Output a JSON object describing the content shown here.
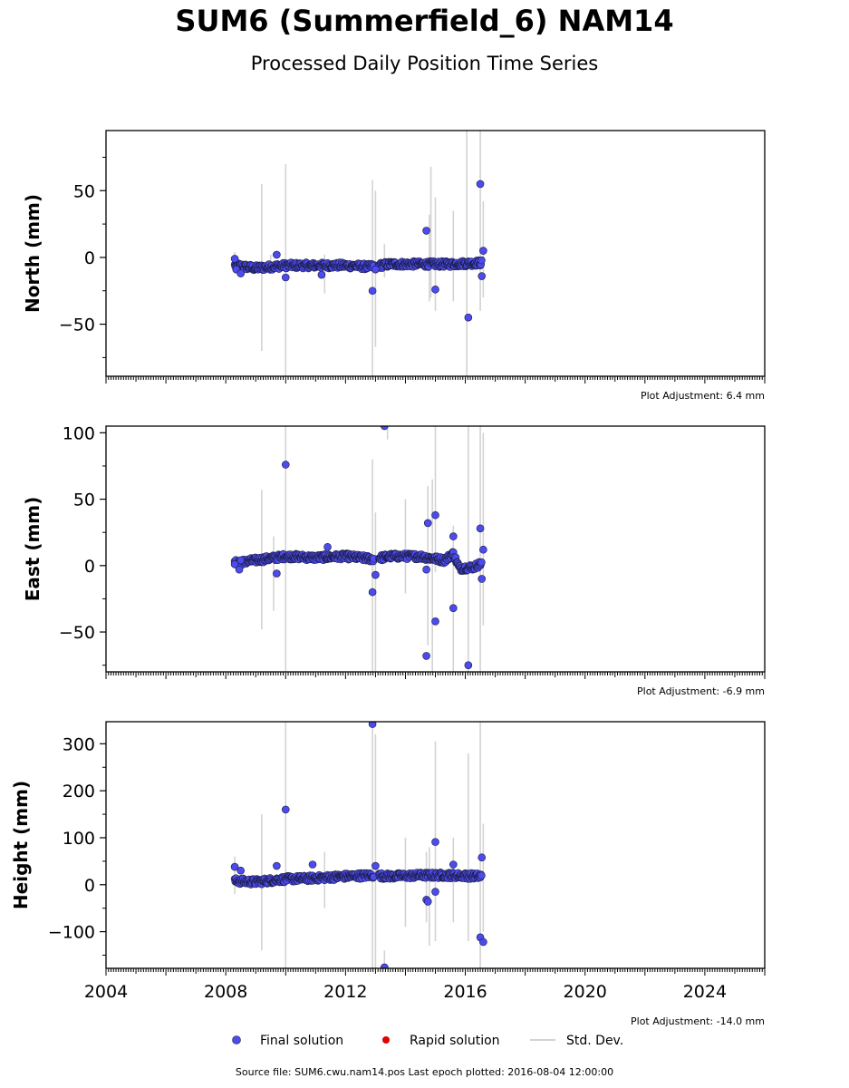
{
  "header": {
    "title": "SUM6 (Summerfield_6) NAM14",
    "subtitle": "Processed Daily Position Time Series"
  },
  "footer": {
    "source": "Source file: SUM6.cwu.nam14.pos  Last epoch plotted: 2016-08-04 12:00:00"
  },
  "legend": {
    "final": "Final solution",
    "rapid": "Rapid solution",
    "stddev": "Std. Dev."
  },
  "colors": {
    "final": "#4b4bef",
    "rapid": "#e00000",
    "stddev": "#d3d3d3"
  },
  "chart_data": [
    {
      "type": "scatter",
      "panel": "north",
      "ylabel": "North (mm)",
      "adjustment": "Plot Adjustment: 6.4 mm",
      "xlim": [
        2004,
        2026
      ],
      "ylim": [
        -89,
        95
      ],
      "yticks": [
        -50,
        0,
        50
      ],
      "ytick_labels": [
        "−50",
        "0",
        "50"
      ],
      "series": [
        {
          "name": "Final solution",
          "trend": [
            [
              2008.3,
              -6
            ],
            [
              2009.0,
              -8
            ],
            [
              2010.0,
              -6
            ],
            [
              2011.0,
              -6
            ],
            [
              2012.0,
              -6
            ],
            [
              2012.8,
              -7
            ],
            [
              2013.5,
              -5
            ],
            [
              2014.5,
              -5
            ],
            [
              2015.5,
              -5
            ],
            [
              2016.55,
              -4
            ]
          ],
          "outliers": [
            [
              2008.3,
              -1
            ],
            [
              2008.35,
              -9
            ],
            [
              2008.5,
              -12
            ],
            [
              2009.7,
              2
            ],
            [
              2010.0,
              -15
            ],
            [
              2011.2,
              -13
            ],
            [
              2012.9,
              -25
            ],
            [
              2013.0,
              -9
            ],
            [
              2014.7,
              20
            ],
            [
              2015.0,
              -24
            ],
            [
              2016.1,
              -45
            ],
            [
              2016.5,
              55
            ],
            [
              2016.55,
              -14
            ],
            [
              2016.6,
              5
            ]
          ]
        }
      ],
      "stddev_bars": [
        [
          2008.3,
          -10,
          4
        ],
        [
          2009.2,
          -70,
          55
        ],
        [
          2009.5,
          -12,
          2
        ],
        [
          2010.0,
          -90,
          70
        ],
        [
          2011.3,
          -27,
          2
        ],
        [
          2012.9,
          -90,
          58
        ],
        [
          2013.0,
          -67,
          50
        ],
        [
          2013.3,
          -15,
          10
        ],
        [
          2014.8,
          -33,
          32
        ],
        [
          2014.85,
          -30,
          68
        ],
        [
          2015.0,
          -40,
          45
        ],
        [
          2015.6,
          -33,
          35
        ],
        [
          2016.05,
          -90,
          95
        ],
        [
          2016.5,
          -40,
          95
        ],
        [
          2016.6,
          -30,
          42
        ]
      ]
    },
    {
      "type": "scatter",
      "panel": "east",
      "ylabel": "East (mm)",
      "adjustment": "Plot Adjustment: -6.9 mm",
      "xlim": [
        2004,
        2026
      ],
      "ylim": [
        -80,
        105
      ],
      "yticks": [
        -50,
        0,
        50,
        100
      ],
      "ytick_labels": [
        "−50",
        "0",
        "50",
        "100"
      ],
      "series": [
        {
          "name": "Final solution",
          "trend": [
            [
              2008.3,
              2
            ],
            [
              2009.0,
              4
            ],
            [
              2010.0,
              7
            ],
            [
              2011.0,
              6
            ],
            [
              2012.0,
              7
            ],
            [
              2012.9,
              5
            ],
            [
              2013.5,
              7
            ],
            [
              2014.5,
              7
            ],
            [
              2015.3,
              4
            ],
            [
              2015.6,
              9
            ],
            [
              2015.8,
              -2
            ],
            [
              2016.3,
              -1
            ],
            [
              2016.55,
              2
            ]
          ],
          "outliers": [
            [
              2008.3,
              1
            ],
            [
              2008.45,
              -3
            ],
            [
              2008.5,
              4
            ],
            [
              2009.7,
              -6
            ],
            [
              2010.0,
              76
            ],
            [
              2011.4,
              14
            ],
            [
              2012.9,
              -20
            ],
            [
              2013.0,
              -7
            ],
            [
              2013.3,
              105
            ],
            [
              2014.7,
              -68
            ],
            [
              2014.7,
              -3
            ],
            [
              2014.75,
              32
            ],
            [
              2015.0,
              38
            ],
            [
              2015.0,
              -42
            ],
            [
              2015.6,
              22
            ],
            [
              2015.6,
              -32
            ],
            [
              2016.1,
              -75
            ],
            [
              2016.5,
              28
            ],
            [
              2016.55,
              -10
            ],
            [
              2016.6,
              12
            ]
          ]
        }
      ],
      "stddev_bars": [
        [
          2009.2,
          -48,
          57
        ],
        [
          2009.6,
          -34,
          22
        ],
        [
          2010.0,
          -80,
          105
        ],
        [
          2012.9,
          -80,
          80
        ],
        [
          2013.0,
          -80,
          40
        ],
        [
          2013.4,
          95,
          105
        ],
        [
          2014.0,
          -21,
          50
        ],
        [
          2014.75,
          -60,
          60
        ],
        [
          2014.9,
          -80,
          65
        ],
        [
          2015.0,
          -5,
          105
        ],
        [
          2015.6,
          -80,
          30
        ],
        [
          2016.1,
          -80,
          105
        ],
        [
          2016.5,
          -80,
          105
        ],
        [
          2016.6,
          -45,
          100
        ]
      ]
    },
    {
      "type": "scatter",
      "panel": "height",
      "ylabel": "Height (mm)",
      "adjustment": "Plot Adjustment: -14.0 mm",
      "xlim": [
        2004,
        2026
      ],
      "ylim": [
        -178,
        347
      ],
      "yticks": [
        -100,
        0,
        100,
        200,
        300
      ],
      "ytick_labels": [
        "−100",
        "0",
        "100",
        "200",
        "300"
      ],
      "xticks": [
        2004,
        2008,
        2012,
        2016,
        2020,
        2024
      ],
      "xtick_labels": [
        "2004",
        "2008",
        "2012",
        "2016",
        "2020",
        "2024"
      ],
      "series": [
        {
          "name": "Final solution",
          "trend": [
            [
              2008.3,
              8
            ],
            [
              2009.0,
              6
            ],
            [
              2010.0,
              12
            ],
            [
              2011.0,
              14
            ],
            [
              2012.0,
              18
            ],
            [
              2012.9,
              20
            ],
            [
              2013.5,
              18
            ],
            [
              2014.5,
              20
            ],
            [
              2015.5,
              20
            ],
            [
              2016.55,
              18
            ]
          ],
          "outliers": [
            [
              2008.3,
              38
            ],
            [
              2008.5,
              30
            ],
            [
              2009.7,
              40
            ],
            [
              2010.0,
              160
            ],
            [
              2010.9,
              43
            ],
            [
              2012.9,
              342
            ],
            [
              2013.0,
              40
            ],
            [
              2013.3,
              -176
            ],
            [
              2014.7,
              -32
            ],
            [
              2014.75,
              -36
            ],
            [
              2015.0,
              91
            ],
            [
              2015.0,
              -15
            ],
            [
              2015.6,
              43
            ],
            [
              2016.5,
              -112
            ],
            [
              2016.55,
              58
            ],
            [
              2016.6,
              -122
            ]
          ]
        }
      ],
      "stddev_bars": [
        [
          2008.3,
          -20,
          60
        ],
        [
          2009.2,
          -140,
          150
        ],
        [
          2010.0,
          -178,
          347
        ],
        [
          2011.3,
          -50,
          70
        ],
        [
          2012.9,
          -178,
          347
        ],
        [
          2013.0,
          -178,
          320
        ],
        [
          2013.3,
          -175,
          -140
        ],
        [
          2014.0,
          -90,
          100
        ],
        [
          2014.7,
          -80,
          70
        ],
        [
          2014.8,
          -130,
          80
        ],
        [
          2015.0,
          -120,
          305
        ],
        [
          2015.6,
          -80,
          100
        ],
        [
          2016.1,
          -120,
          280
        ],
        [
          2016.5,
          -178,
          347
        ],
        [
          2016.6,
          -100,
          130
        ]
      ]
    }
  ]
}
